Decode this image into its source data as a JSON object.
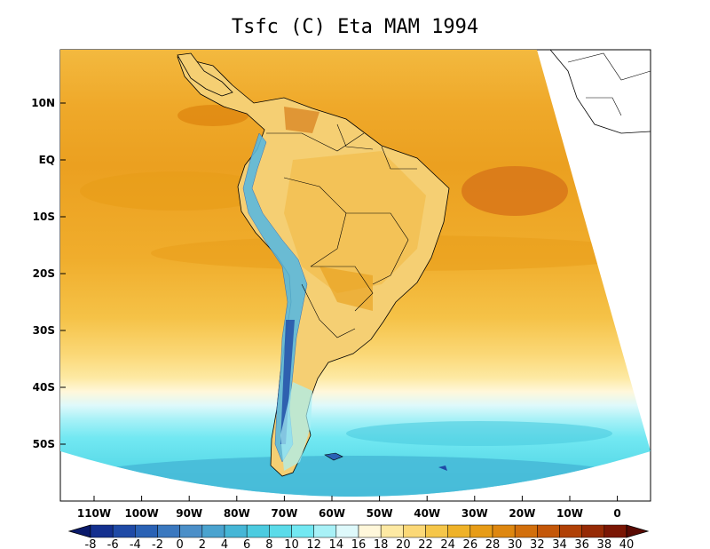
{
  "title": "Tsfc (C) Eta MAM 1994",
  "map": {
    "type": "map",
    "variable": "Tsfc",
    "units": "C",
    "model": "Eta",
    "season": "MAM",
    "year": "1994",
    "region": "South America",
    "lat_ticks": [
      "10N",
      "EQ",
      "10S",
      "20S",
      "30S",
      "40S",
      "50S"
    ],
    "lon_ticks": [
      "110W",
      "100W",
      "90W",
      "80W",
      "70W",
      "60W",
      "50W",
      "40W",
      "30W",
      "20W",
      "10W",
      "0"
    ]
  },
  "colorbar": {
    "levels": [
      "-8",
      "-6",
      "-4",
      "-2",
      "0",
      "2",
      "4",
      "6",
      "8",
      "10",
      "12",
      "14",
      "16",
      "18",
      "20",
      "22",
      "24",
      "26",
      "28",
      "30",
      "32",
      "34",
      "36",
      "38",
      "40"
    ],
    "colors": [
      "#0a1a6b",
      "#14308f",
      "#1f4aa6",
      "#2a62b5",
      "#3a78bf",
      "#4b8fc8",
      "#4aa3cf",
      "#45b6d6",
      "#4ccbe0",
      "#5bdbe9",
      "#72e8f2",
      "#a8f1f7",
      "#def9fb",
      "#fff7da",
      "#fde9a3",
      "#fbd877",
      "#f5c649",
      "#efb228",
      "#e79c17",
      "#de8710",
      "#d26f0c",
      "#c45709",
      "#b04006",
      "#962a05",
      "#7a1604",
      "#5a0a03"
    ]
  }
}
